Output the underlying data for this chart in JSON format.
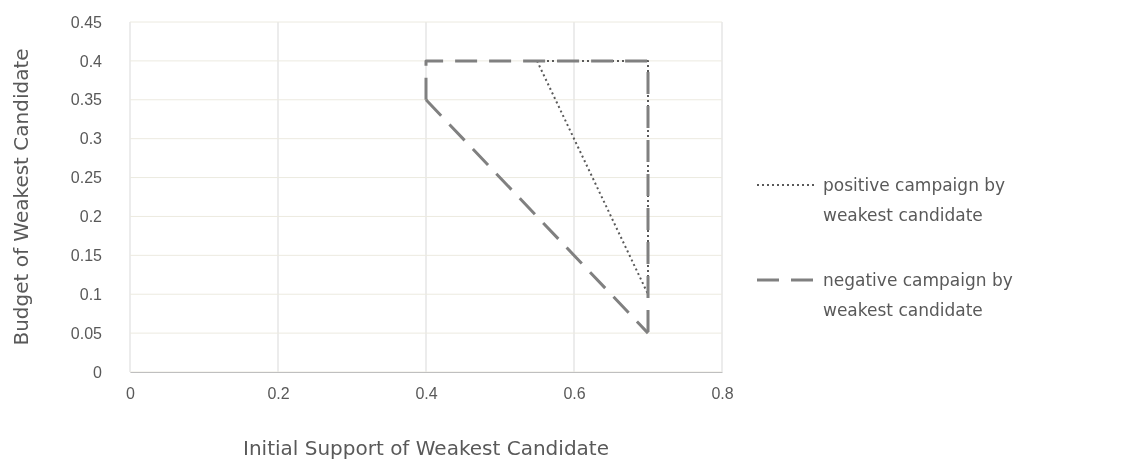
{
  "chart_data": {
    "type": "line",
    "xlabel": "Initial Support of Weakest Candidate",
    "ylabel": "Budget of Weakest Candidate",
    "xlim": [
      0,
      0.8
    ],
    "xticks": [
      {
        "value": 0,
        "label": "0"
      },
      {
        "value": 0.2,
        "label": "0.2"
      },
      {
        "value": 0.4,
        "label": "0.4"
      },
      {
        "value": 0.6,
        "label": "0.6"
      },
      {
        "value": 0.8,
        "label": "0.8"
      }
    ],
    "ylim": [
      0,
      0.45
    ],
    "yticks": [
      {
        "value": 0,
        "label": "0"
      },
      {
        "value": 0.05,
        "label": "0.05"
      },
      {
        "value": 0.1,
        "label": "0.1"
      },
      {
        "value": 0.15,
        "label": "0.15"
      },
      {
        "value": 0.2,
        "label": "0.2"
      },
      {
        "value": 0.25,
        "label": "0.25"
      },
      {
        "value": 0.3,
        "label": "0.3"
      },
      {
        "value": 0.35,
        "label": "0.35"
      },
      {
        "value": 0.4,
        "label": "0.4"
      },
      {
        "value": 0.45,
        "label": "0.45"
      }
    ],
    "grid": true,
    "legend": "right",
    "series": [
      {
        "name": "positive campaign by weakest candidate",
        "color": "#595959",
        "line_style": "dotted",
        "x": [
          0.55,
          0.7,
          0.7
        ],
        "values": [
          0.4,
          0.4,
          0.1
        ]
      },
      {
        "color": "#595959",
        "line_style": "dotted",
        "x": [
          0.55,
          0.7
        ],
        "values": [
          0.4,
          0.1
        ]
      },
      {
        "name": "negative campaign by weakest candidate",
        "color": "#808080",
        "line_style": "dashed",
        "x": [
          0.4,
          0.4,
          0.7,
          0.7
        ],
        "values": [
          0.35,
          0.4,
          0.4,
          0.05
        ]
      },
      {
        "color": "#808080",
        "line_style": "dashed",
        "x": [
          0.4,
          0.7
        ],
        "values": [
          0.35,
          0.05
        ]
      }
    ]
  }
}
